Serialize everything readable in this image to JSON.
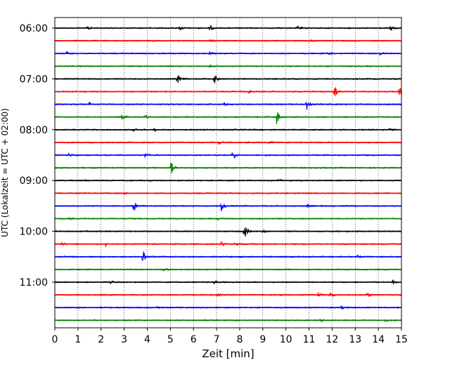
{
  "chart_data": {
    "type": "line",
    "title": "",
    "xlabel": "Zeit  [min]",
    "ylabel": "UTC (Lokalzeit = UTC + 02:00)",
    "xlim": [
      0,
      15
    ],
    "x_ticks": [
      0,
      1,
      2,
      3,
      4,
      5,
      6,
      7,
      8,
      9,
      10,
      11,
      12,
      13,
      14,
      15
    ],
    "x_tick_labels": [
      "0",
      "1",
      "2",
      "3",
      "4",
      "5",
      "6",
      "7",
      "8",
      "9",
      "10",
      "11",
      "12",
      "13",
      "14",
      "15"
    ],
    "y_tick_labels": [
      "06:00",
      "07:00",
      "08:00",
      "09:00",
      "10:00",
      "11:00"
    ],
    "y_tick_trace_index": [
      0,
      4,
      8,
      12,
      16,
      20
    ],
    "grid": "vertical dotted at each minute",
    "trace_colors": [
      "#000000",
      "#ff0000",
      "#0000ff",
      "#008000"
    ],
    "traces": [
      {
        "start": "06:00",
        "events": [
          {
            "x": 1.4,
            "amp": 0.25
          },
          {
            "x": 5.4,
            "amp": 0.25
          },
          {
            "x": 6.7,
            "amp": 0.28
          },
          {
            "x": 10.5,
            "amp": 0.25
          },
          {
            "x": 14.5,
            "amp": 0.35
          }
        ]
      },
      {
        "start": "06:15",
        "events": [
          {
            "x": 6.7,
            "amp": 0.12
          },
          {
            "x": 11.0,
            "amp": 0.12
          }
        ]
      },
      {
        "start": "06:30",
        "events": [
          {
            "x": 0.5,
            "amp": 0.18
          },
          {
            "x": 6.7,
            "amp": 0.15
          },
          {
            "x": 11.8,
            "amp": 0.15
          },
          {
            "x": 14.1,
            "amp": 0.18
          }
        ]
      },
      {
        "start": "06:45",
        "events": [
          {
            "x": 6.7,
            "amp": 0.1
          }
        ]
      },
      {
        "start": "07:00",
        "events": [
          {
            "x": 5.3,
            "amp": 0.5
          },
          {
            "x": 6.9,
            "amp": 0.45
          }
        ]
      },
      {
        "start": "07:15",
        "events": [
          {
            "x": 8.4,
            "amp": 0.15
          },
          {
            "x": 12.1,
            "amp": 0.55
          },
          {
            "x": 14.9,
            "amp": 0.55
          }
        ]
      },
      {
        "start": "07:30",
        "events": [
          {
            "x": 1.5,
            "amp": 0.18
          },
          {
            "x": 7.3,
            "amp": 0.18
          },
          {
            "x": 10.9,
            "amp": 0.6
          }
        ]
      },
      {
        "start": "07:45",
        "events": [
          {
            "x": 2.9,
            "amp": 0.22
          },
          {
            "x": 3.9,
            "amp": 0.18
          },
          {
            "x": 9.6,
            "amp": 0.75
          }
        ]
      },
      {
        "start": "08:00",
        "events": [
          {
            "x": 3.4,
            "amp": 0.15
          },
          {
            "x": 4.3,
            "amp": 0.15
          },
          {
            "x": 14.5,
            "amp": 0.15
          }
        ]
      },
      {
        "start": "08:15",
        "events": [
          {
            "x": 7.1,
            "amp": 0.18
          },
          {
            "x": 9.3,
            "amp": 0.12
          }
        ]
      },
      {
        "start": "08:30",
        "events": [
          {
            "x": 0.6,
            "amp": 0.18
          },
          {
            "x": 3.9,
            "amp": 0.22
          },
          {
            "x": 7.7,
            "amp": 0.6
          }
        ]
      },
      {
        "start": "08:45",
        "events": [
          {
            "x": 5.0,
            "amp": 0.75
          }
        ]
      },
      {
        "start": "09:00",
        "events": [
          {
            "x": 1.3,
            "amp": 0.12
          },
          {
            "x": 9.7,
            "amp": 0.15
          }
        ]
      },
      {
        "start": "09:15",
        "events": [
          {
            "x": 3.0,
            "amp": 0.1
          }
        ]
      },
      {
        "start": "09:30",
        "events": [
          {
            "x": 3.4,
            "amp": 0.55
          },
          {
            "x": 7.2,
            "amp": 0.62
          },
          {
            "x": 10.9,
            "amp": 0.2
          }
        ]
      },
      {
        "start": "09:45",
        "events": [
          {
            "x": 0.6,
            "amp": 0.12
          },
          {
            "x": 7.0,
            "amp": 0.12
          }
        ]
      },
      {
        "start": "10:00",
        "events": [
          {
            "x": 8.2,
            "amp": 0.85
          },
          {
            "x": 9.0,
            "amp": 0.15
          }
        ]
      },
      {
        "start": "10:15",
        "events": [
          {
            "x": 0.3,
            "amp": 0.22
          },
          {
            "x": 2.2,
            "amp": 0.25
          },
          {
            "x": 7.2,
            "amp": 0.22
          },
          {
            "x": 7.8,
            "amp": 0.28
          }
        ]
      },
      {
        "start": "10:30",
        "events": [
          {
            "x": 3.8,
            "amp": 0.6
          },
          {
            "x": 13.1,
            "amp": 0.15
          }
        ]
      },
      {
        "start": "10:45",
        "events": [
          {
            "x": 4.7,
            "amp": 0.12
          }
        ]
      },
      {
        "start": "11:00",
        "events": [
          {
            "x": 2.4,
            "amp": 0.15
          },
          {
            "x": 6.9,
            "amp": 0.18
          },
          {
            "x": 14.6,
            "amp": 0.22
          }
        ]
      },
      {
        "start": "11:15",
        "events": [
          {
            "x": 7.0,
            "amp": 0.15
          },
          {
            "x": 11.4,
            "amp": 0.2
          },
          {
            "x": 11.9,
            "amp": 0.38
          },
          {
            "x": 13.5,
            "amp": 0.25
          }
        ]
      },
      {
        "start": "11:30",
        "events": [
          {
            "x": 4.4,
            "amp": 0.15
          },
          {
            "x": 12.4,
            "amp": 0.15
          }
        ]
      },
      {
        "start": "11:45",
        "events": [
          {
            "x": 11.5,
            "amp": 0.15
          },
          {
            "x": 14.3,
            "amp": 0.15
          }
        ]
      }
    ]
  }
}
